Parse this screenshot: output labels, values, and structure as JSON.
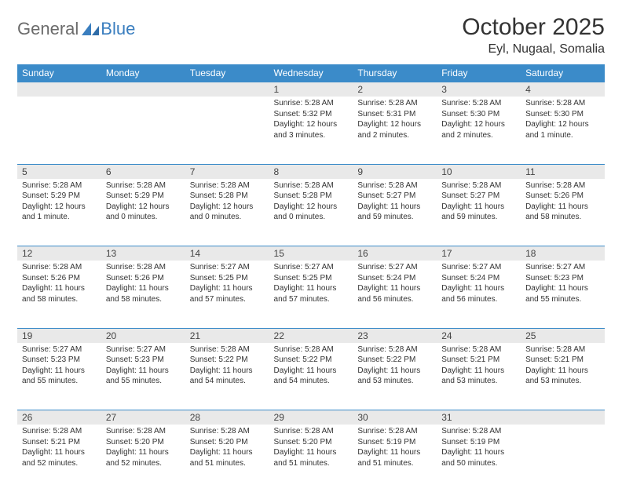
{
  "logo": {
    "general": "General",
    "blue": "Blue"
  },
  "title": "October 2025",
  "location": "Eyl, Nugaal, Somalia",
  "colors": {
    "header_bg": "#3b8bc9",
    "header_fg": "#ffffff",
    "daynum_bg": "#e9e9e9",
    "border": "#3b8bc9",
    "text": "#333333",
    "logo_gray": "#6b6b6b",
    "logo_blue": "#3a7ebf"
  },
  "weekdays": [
    "Sunday",
    "Monday",
    "Tuesday",
    "Wednesday",
    "Thursday",
    "Friday",
    "Saturday"
  ],
  "weeks": [
    [
      null,
      null,
      null,
      {
        "n": "1",
        "sr": "5:28 AM",
        "ss": "5:32 PM",
        "dl": "12 hours and 3 minutes."
      },
      {
        "n": "2",
        "sr": "5:28 AM",
        "ss": "5:31 PM",
        "dl": "12 hours and 2 minutes."
      },
      {
        "n": "3",
        "sr": "5:28 AM",
        "ss": "5:30 PM",
        "dl": "12 hours and 2 minutes."
      },
      {
        "n": "4",
        "sr": "5:28 AM",
        "ss": "5:30 PM",
        "dl": "12 hours and 1 minute."
      }
    ],
    [
      {
        "n": "5",
        "sr": "5:28 AM",
        "ss": "5:29 PM",
        "dl": "12 hours and 1 minute."
      },
      {
        "n": "6",
        "sr": "5:28 AM",
        "ss": "5:29 PM",
        "dl": "12 hours and 0 minutes."
      },
      {
        "n": "7",
        "sr": "5:28 AM",
        "ss": "5:28 PM",
        "dl": "12 hours and 0 minutes."
      },
      {
        "n": "8",
        "sr": "5:28 AM",
        "ss": "5:28 PM",
        "dl": "12 hours and 0 minutes."
      },
      {
        "n": "9",
        "sr": "5:28 AM",
        "ss": "5:27 PM",
        "dl": "11 hours and 59 minutes."
      },
      {
        "n": "10",
        "sr": "5:28 AM",
        "ss": "5:27 PM",
        "dl": "11 hours and 59 minutes."
      },
      {
        "n": "11",
        "sr": "5:28 AM",
        "ss": "5:26 PM",
        "dl": "11 hours and 58 minutes."
      }
    ],
    [
      {
        "n": "12",
        "sr": "5:28 AM",
        "ss": "5:26 PM",
        "dl": "11 hours and 58 minutes."
      },
      {
        "n": "13",
        "sr": "5:28 AM",
        "ss": "5:26 PM",
        "dl": "11 hours and 58 minutes."
      },
      {
        "n": "14",
        "sr": "5:27 AM",
        "ss": "5:25 PM",
        "dl": "11 hours and 57 minutes."
      },
      {
        "n": "15",
        "sr": "5:27 AM",
        "ss": "5:25 PM",
        "dl": "11 hours and 57 minutes."
      },
      {
        "n": "16",
        "sr": "5:27 AM",
        "ss": "5:24 PM",
        "dl": "11 hours and 56 minutes."
      },
      {
        "n": "17",
        "sr": "5:27 AM",
        "ss": "5:24 PM",
        "dl": "11 hours and 56 minutes."
      },
      {
        "n": "18",
        "sr": "5:27 AM",
        "ss": "5:23 PM",
        "dl": "11 hours and 55 minutes."
      }
    ],
    [
      {
        "n": "19",
        "sr": "5:27 AM",
        "ss": "5:23 PM",
        "dl": "11 hours and 55 minutes."
      },
      {
        "n": "20",
        "sr": "5:27 AM",
        "ss": "5:23 PM",
        "dl": "11 hours and 55 minutes."
      },
      {
        "n": "21",
        "sr": "5:28 AM",
        "ss": "5:22 PM",
        "dl": "11 hours and 54 minutes."
      },
      {
        "n": "22",
        "sr": "5:28 AM",
        "ss": "5:22 PM",
        "dl": "11 hours and 54 minutes."
      },
      {
        "n": "23",
        "sr": "5:28 AM",
        "ss": "5:22 PM",
        "dl": "11 hours and 53 minutes."
      },
      {
        "n": "24",
        "sr": "5:28 AM",
        "ss": "5:21 PM",
        "dl": "11 hours and 53 minutes."
      },
      {
        "n": "25",
        "sr": "5:28 AM",
        "ss": "5:21 PM",
        "dl": "11 hours and 53 minutes."
      }
    ],
    [
      {
        "n": "26",
        "sr": "5:28 AM",
        "ss": "5:21 PM",
        "dl": "11 hours and 52 minutes."
      },
      {
        "n": "27",
        "sr": "5:28 AM",
        "ss": "5:20 PM",
        "dl": "11 hours and 52 minutes."
      },
      {
        "n": "28",
        "sr": "5:28 AM",
        "ss": "5:20 PM",
        "dl": "11 hours and 51 minutes."
      },
      {
        "n": "29",
        "sr": "5:28 AM",
        "ss": "5:20 PM",
        "dl": "11 hours and 51 minutes."
      },
      {
        "n": "30",
        "sr": "5:28 AM",
        "ss": "5:19 PM",
        "dl": "11 hours and 51 minutes."
      },
      {
        "n": "31",
        "sr": "5:28 AM",
        "ss": "5:19 PM",
        "dl": "11 hours and 50 minutes."
      },
      null
    ]
  ],
  "labels": {
    "sunrise": "Sunrise:",
    "sunset": "Sunset:",
    "daylight": "Daylight:"
  }
}
